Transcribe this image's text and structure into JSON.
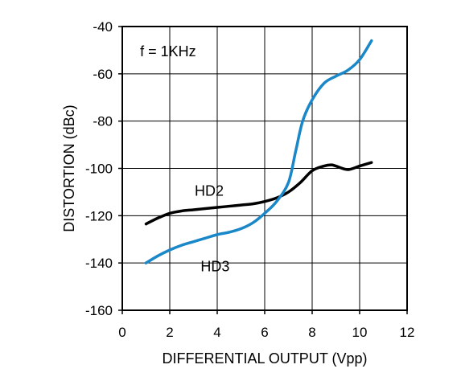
{
  "chart_data": {
    "type": "line",
    "xlabel": "DIFFERENTIAL OUTPUT (Vpp)",
    "ylabel": "DISTORTION (dBc)",
    "xlim": [
      0,
      12
    ],
    "ylim": [
      -160,
      -40
    ],
    "xticks": [
      0,
      2,
      4,
      6,
      8,
      10,
      12
    ],
    "yticks": [
      -40,
      -60,
      -80,
      -100,
      -120,
      -140,
      -160
    ],
    "x_tick_labels": [
      "0",
      "2",
      "4",
      "6",
      "8",
      "10",
      "12"
    ],
    "y_tick_labels": [
      "-40",
      "-60",
      "-80",
      "-100",
      "-120",
      "-140",
      "-160"
    ],
    "grid": true,
    "annotations": {
      "condition": "f = 1KHz",
      "hd2": "HD2",
      "hd3": "HD3"
    },
    "series": [
      {
        "name": "HD2",
        "color": "#000000",
        "x": [
          1.0,
          1.5,
          2.0,
          2.5,
          3.0,
          3.5,
          4.0,
          4.5,
          5.0,
          5.5,
          6.0,
          6.5,
          7.0,
          7.5,
          8.0,
          8.5,
          8.8,
          9.0,
          9.5,
          10.0,
          10.5
        ],
        "y": [
          -123.5,
          -121,
          -119,
          -118,
          -117.5,
          -117,
          -116.5,
          -116,
          -115.5,
          -115,
          -114,
          -112.5,
          -110,
          -106,
          -101,
          -99,
          -98.5,
          -99,
          -100.5,
          -99,
          -97.5
        ]
      },
      {
        "name": "HD3",
        "color": "#1a88c8",
        "x": [
          1.0,
          1.5,
          2.0,
          2.5,
          3.0,
          3.5,
          4.0,
          4.5,
          5.0,
          5.5,
          6.0,
          6.5,
          7.0,
          7.3,
          7.6,
          8.0,
          8.5,
          9.0,
          9.5,
          10.0,
          10.5
        ],
        "y": [
          -140,
          -137,
          -134.5,
          -132.5,
          -131,
          -129.5,
          -128,
          -127,
          -125.5,
          -123,
          -119,
          -114,
          -106,
          -93,
          -80,
          -71,
          -64,
          -61,
          -58.5,
          -54,
          -46
        ]
      }
    ]
  }
}
